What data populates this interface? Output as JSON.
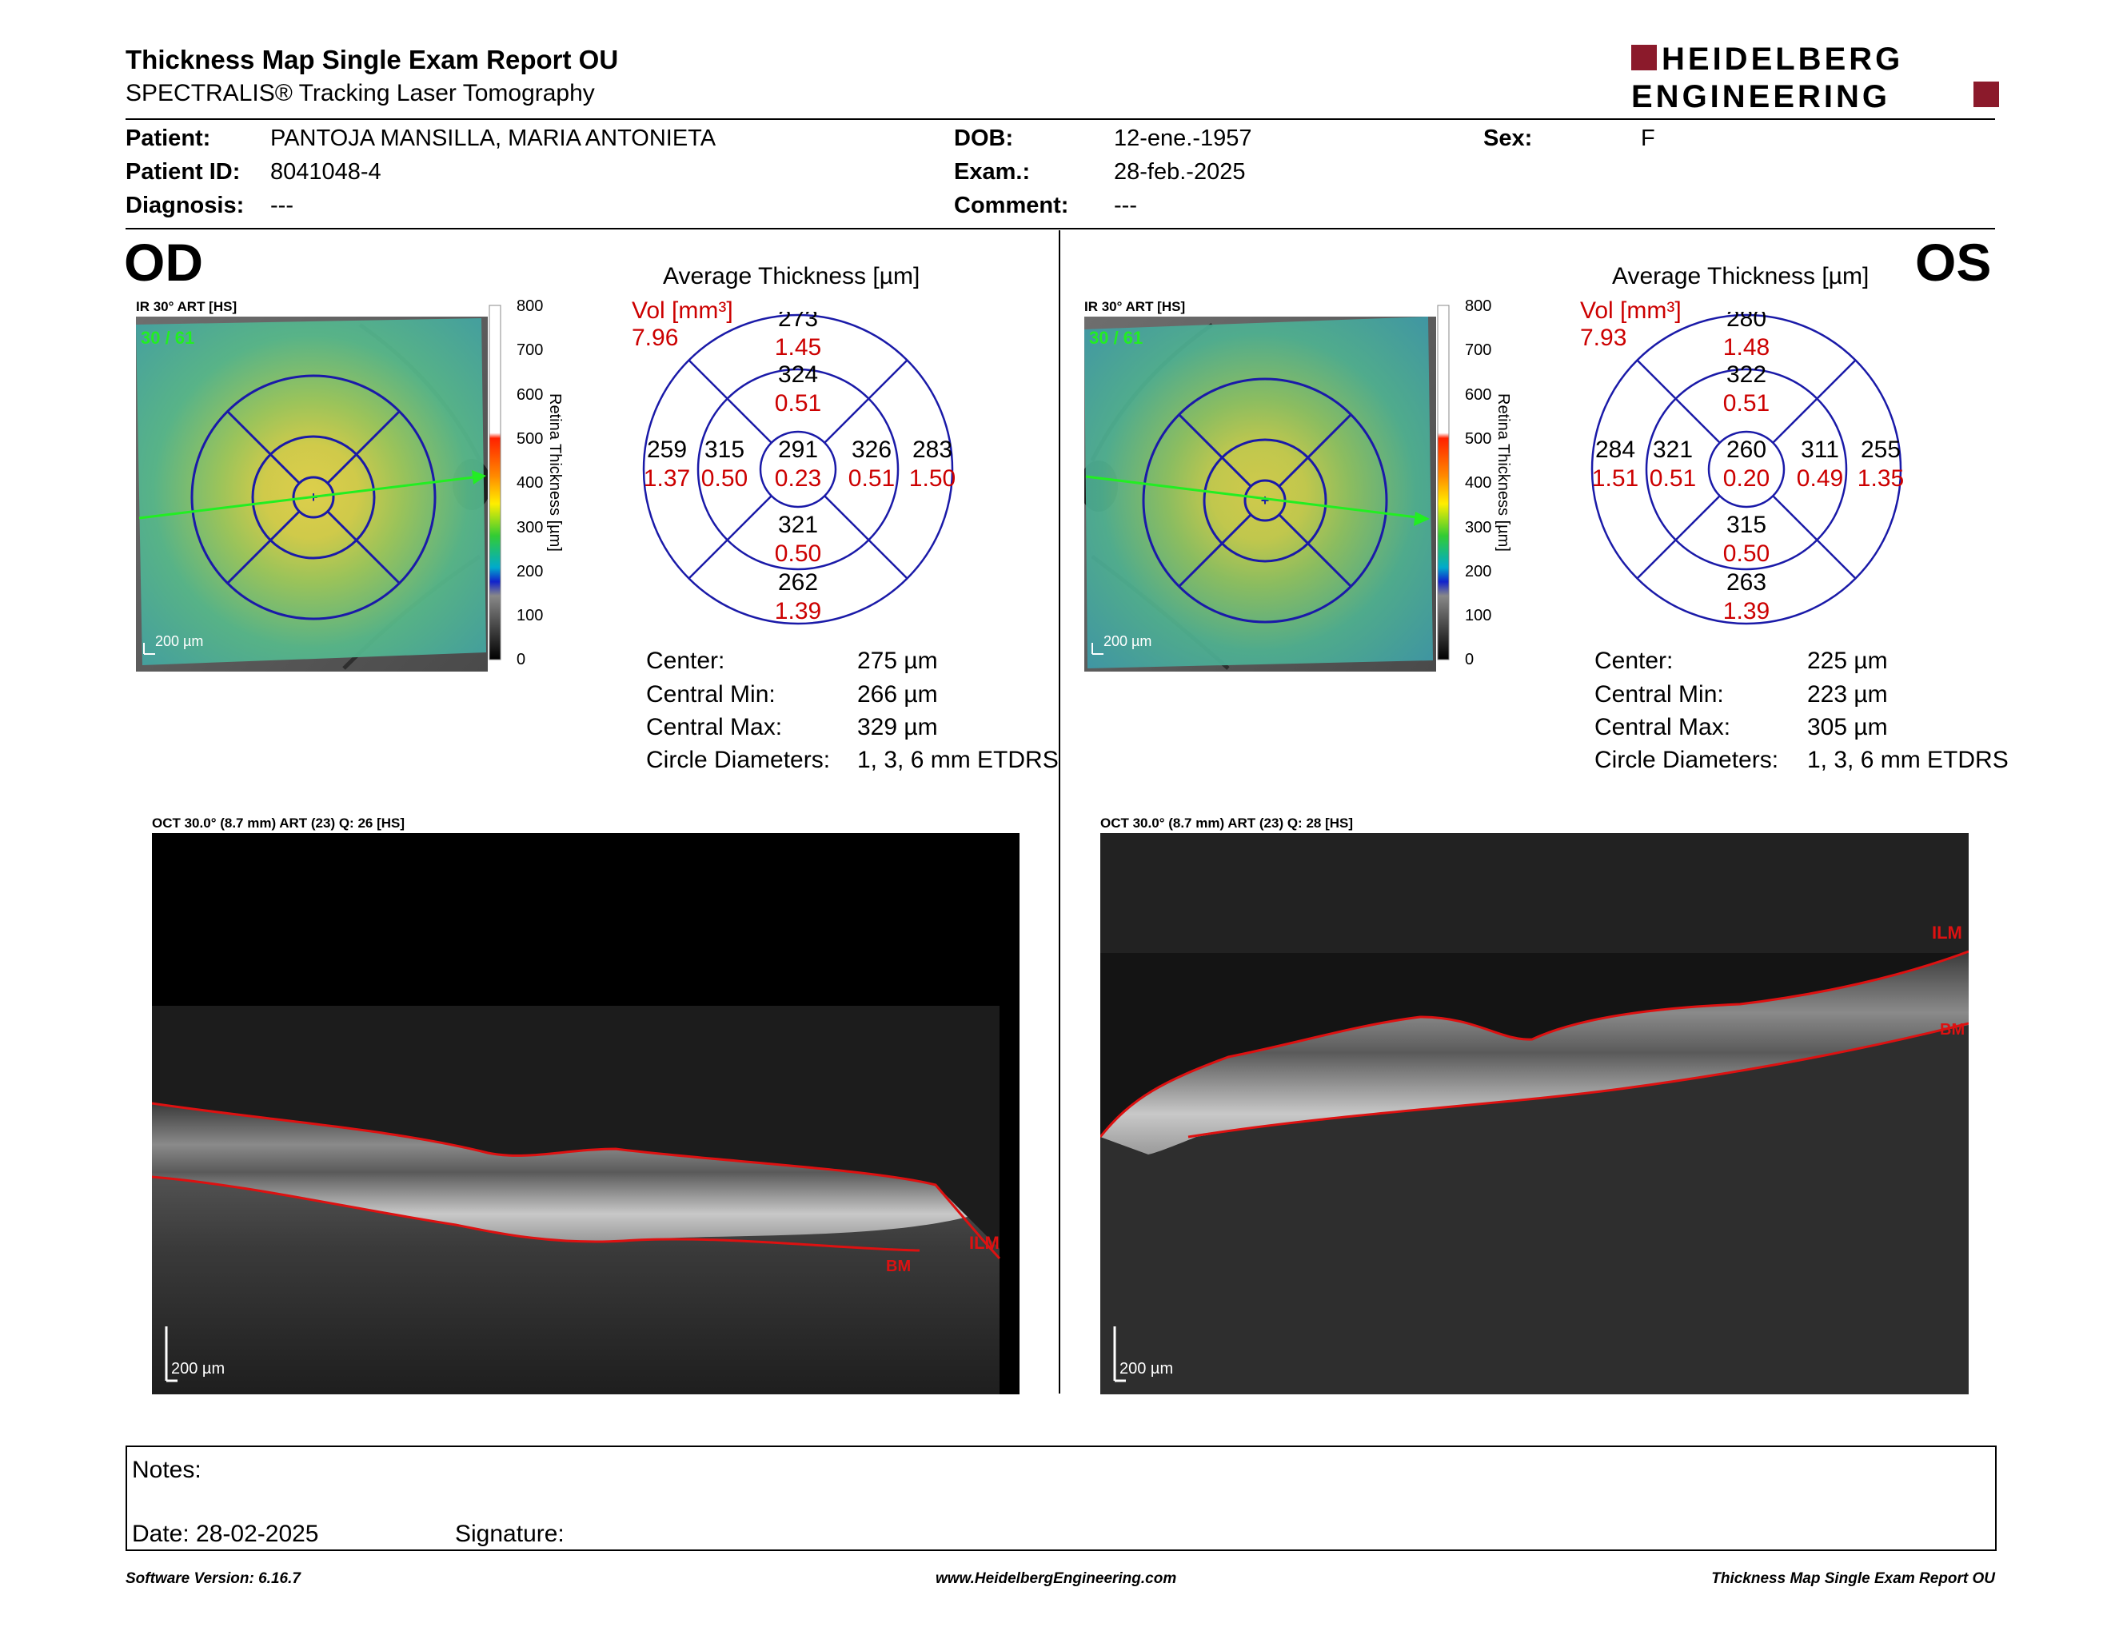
{
  "report": {
    "title": "Thickness Map Single Exam Report OU",
    "subtitle": "SPECTRALIS® Tracking Laser Tomography",
    "logo_line1": "HEIDELBERG",
    "logo_line2": "ENGINEERING",
    "brand_color": "#8b1a2b"
  },
  "patient": {
    "patient_label": "Patient:",
    "patient_value": "PANTOJA MANSILLA, MARIA ANTONIETA",
    "id_label": "Patient ID:",
    "id_value": "8041048-4",
    "diagnosis_label": "Diagnosis:",
    "diagnosis_value": "---",
    "dob_label": "DOB:",
    "dob_value": "12-ene.-1957",
    "exam_label": "Exam.:",
    "exam_value": "28-feb.-2025",
    "comment_label": "Comment:",
    "comment_value": "---",
    "sex_label": "Sex:",
    "sex_value": "F"
  },
  "colorbar": {
    "label": "Retina Thickness [µm]",
    "ticks": [
      "800",
      "700",
      "600",
      "500",
      "400",
      "300",
      "200",
      "100",
      "0"
    ]
  },
  "od": {
    "eye": "OD",
    "ir_label": "IR 30° ART [HS]",
    "ir_counter": "30 / 61",
    "scale": "200 µm",
    "chart_title": "Average Thickness [µm]",
    "vol_label": "Vol [mm³]",
    "vol_total": "7.96",
    "sectors": {
      "center": {
        "t": "291",
        "v": "0.23"
      },
      "inner_top": {
        "t": "324",
        "v": "0.51"
      },
      "inner_bottom": {
        "t": "321",
        "v": "0.50"
      },
      "inner_left": {
        "t": "315",
        "v": "0.50"
      },
      "inner_right": {
        "t": "326",
        "v": "0.51"
      },
      "outer_top": {
        "t": "273",
        "v": "1.45"
      },
      "outer_bottom": {
        "t": "262",
        "v": "1.39"
      },
      "outer_left": {
        "t": "259",
        "v": "1.37"
      },
      "outer_right": {
        "t": "283",
        "v": "1.50"
      }
    },
    "stats": {
      "center_label": "Center:",
      "center_value": "275 µm",
      "min_label": "Central Min:",
      "min_value": "266 µm",
      "max_label": "Central Max:",
      "max_value": "329 µm",
      "diam_label": "Circle Diameters:",
      "diam_value": "1, 3, 6 mm ETDRS"
    },
    "oct_label": "OCT 30.0° (8.7 mm) ART (23) Q: 26 [HS]",
    "ilm": "ILM",
    "bm": "BM",
    "oct_scale": "200 µm"
  },
  "os": {
    "eye": "OS",
    "ir_label": "IR 30° ART [HS]",
    "ir_counter": "30 / 61",
    "scale": "200 µm",
    "chart_title": "Average Thickness [µm]",
    "vol_label": "Vol [mm³]",
    "vol_total": "7.93",
    "sectors": {
      "center": {
        "t": "260",
        "v": "0.20"
      },
      "inner_top": {
        "t": "322",
        "v": "0.51"
      },
      "inner_bottom": {
        "t": "315",
        "v": "0.50"
      },
      "inner_left": {
        "t": "321",
        "v": "0.51"
      },
      "inner_right": {
        "t": "311",
        "v": "0.49"
      },
      "outer_top": {
        "t": "280",
        "v": "1.48"
      },
      "outer_bottom": {
        "t": "263",
        "v": "1.39"
      },
      "outer_left": {
        "t": "284",
        "v": "1.51"
      },
      "outer_right": {
        "t": "255",
        "v": "1.35"
      }
    },
    "stats": {
      "center_label": "Center:",
      "center_value": "225 µm",
      "min_label": "Central Min:",
      "min_value": "223 µm",
      "max_label": "Central Max:",
      "max_value": "305 µm",
      "diam_label": "Circle Diameters:",
      "diam_value": "1, 3, 6 mm ETDRS"
    },
    "oct_label": "OCT 30.0° (8.7 mm) ART (23) Q: 28 [HS]",
    "ilm": "ILM",
    "bm": "BM",
    "oct_scale": "200 µm"
  },
  "notes": {
    "notes_label": "Notes:",
    "date_label": "Date: 28-02-2025",
    "signature_label": "Signature:"
  },
  "footer": {
    "software": "Software Version: 6.16.7",
    "website": "www.HeidelbergEngineering.com",
    "report_name": "Thickness Map Single Exam Report OU"
  },
  "colors": {
    "grid_blue": "#1a1aa8",
    "volume_red": "#cc0000",
    "segmentation_red": "#dd1111",
    "scan_line_green": "#22ee22"
  }
}
